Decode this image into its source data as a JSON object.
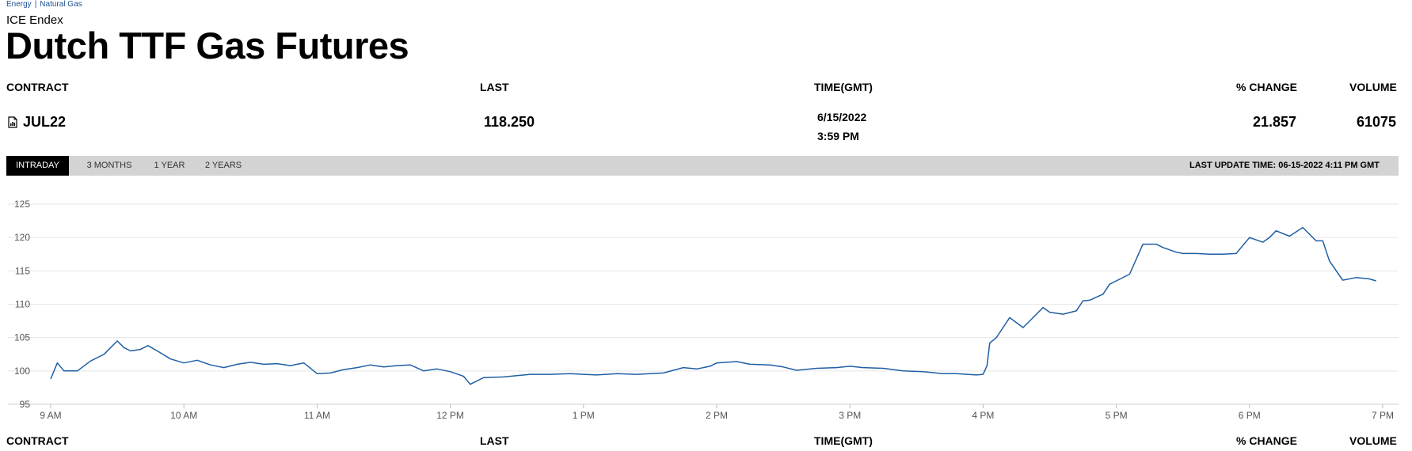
{
  "breadcrumb": {
    "item1": "Energy",
    "separator": "|",
    "item2": "Natural Gas"
  },
  "exchange": "ICE Endex",
  "title": "Dutch TTF Gas Futures",
  "table": {
    "headers": {
      "contract": "CONTRACT",
      "last": "LAST",
      "time": "TIME(GMT)",
      "change": "% CHANGE",
      "volume": "VOLUME"
    },
    "row": {
      "contract": "JUL22",
      "last": "118.250",
      "date": "6/15/2022",
      "time": "3:59 PM",
      "change": "21.857",
      "volume": "61075"
    }
  },
  "tabs": [
    "INTRADAY",
    "3 MONTHS",
    "1 YEAR",
    "2 YEARS"
  ],
  "active_tab": "INTRADAY",
  "last_update": "LAST UPDATE TIME: 06-15-2022 4:11 PM GMT",
  "colors": {
    "line": "#1f5fa3",
    "grid": "#e6e6e6",
    "tabbar": "#d3d3d3"
  },
  "icons": {
    "contract": "document-chart-icon"
  },
  "chart_data": {
    "type": "line",
    "xlabels": [
      "9 AM",
      "10 AM",
      "11 AM",
      "12 PM",
      "1 PM",
      "2 PM",
      "3 PM",
      "4 PM",
      "5 PM",
      "6 PM",
      "7 PM"
    ],
    "xlim": [
      9,
      19
    ],
    "ylim": [
      95,
      125
    ],
    "yticks": [
      95,
      100,
      105,
      110,
      115,
      120,
      125
    ],
    "grid": true,
    "series": [
      {
        "x": [
          9.0,
          9.05,
          9.1,
          9.15,
          9.2,
          9.3,
          9.4,
          9.5,
          9.55,
          9.6,
          9.67,
          9.73,
          9.8,
          9.9,
          10.0,
          10.1,
          10.2,
          10.3,
          10.4,
          10.5,
          10.6,
          10.7,
          10.8,
          10.9,
          11.0,
          11.1,
          11.2,
          11.3,
          11.4,
          11.5,
          11.6,
          11.7,
          11.8,
          11.9,
          12.0,
          12.1,
          12.15,
          12.25,
          12.4,
          12.5,
          12.6,
          12.75,
          12.9,
          13.0,
          13.1,
          13.25,
          13.4,
          13.5,
          13.6,
          13.75,
          13.85,
          13.95,
          14.0,
          14.15,
          14.25,
          14.4,
          14.5,
          14.6,
          14.75,
          14.9,
          15.0,
          15.1,
          15.25,
          15.4,
          15.55,
          15.7,
          15.8,
          15.95,
          16.0,
          16.03,
          16.05,
          16.1,
          16.15,
          16.2,
          16.3,
          16.35,
          16.45,
          16.5,
          16.6,
          16.7,
          16.75,
          16.8,
          16.9,
          16.95,
          17.0,
          17.1,
          17.2,
          17.3,
          17.35,
          17.45,
          17.5,
          17.6,
          17.7,
          17.8,
          17.9,
          18.0,
          18.1,
          18.15,
          18.2,
          18.3,
          18.4,
          18.5,
          18.55,
          18.6,
          18.7,
          18.8,
          18.9,
          18.95
        ],
        "y": [
          98.8,
          101.2,
          100.0,
          100.0,
          100.0,
          101.5,
          102.5,
          104.5,
          103.5,
          103.0,
          103.2,
          103.8,
          103.0,
          101.8,
          101.2,
          101.6,
          100.9,
          100.5,
          101.0,
          101.3,
          101.0,
          101.1,
          100.8,
          101.2,
          99.6,
          99.7,
          100.2,
          100.5,
          100.9,
          100.6,
          100.8,
          100.9,
          100.0,
          100.3,
          99.9,
          99.2,
          98.0,
          99.0,
          99.1,
          99.3,
          99.5,
          99.5,
          99.6,
          99.5,
          99.4,
          99.6,
          99.5,
          99.6,
          99.7,
          100.5,
          100.3,
          100.7,
          101.2,
          101.4,
          101.0,
          100.9,
          100.6,
          100.1,
          100.4,
          100.5,
          100.7,
          100.5,
          100.4,
          100.0,
          99.9,
          99.6,
          99.6,
          99.4,
          99.5,
          100.8,
          104.2,
          105.0,
          106.5,
          108.0,
          106.5,
          107.5,
          109.5,
          108.8,
          108.5,
          109.0,
          110.5,
          110.6,
          111.5,
          113.0,
          113.5,
          114.5,
          119.0,
          119.0,
          118.5,
          117.8,
          117.6,
          117.6,
          117.5,
          117.5,
          117.6,
          120.0,
          119.3,
          120.0,
          121.0,
          120.2,
          121.5,
          119.5,
          119.5,
          116.5,
          113.6,
          114.0,
          113.8,
          113.5
        ],
        "fill_y_note": ""
      }
    ]
  }
}
